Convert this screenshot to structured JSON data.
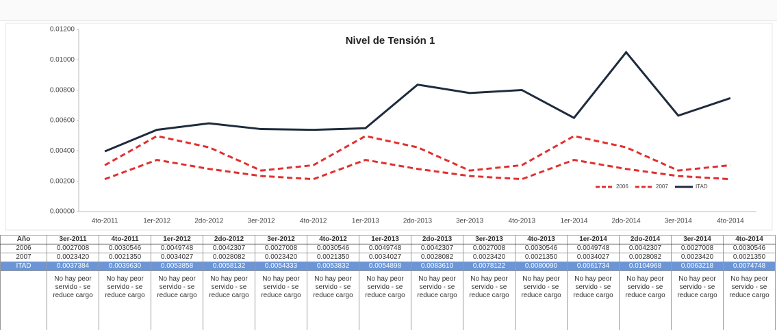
{
  "chart_data": {
    "type": "line",
    "title": "Nivel de Tensión 1",
    "categories": [
      "4to-2011",
      "1er-2012",
      "2do-2012",
      "3er-2012",
      "4to-2012",
      "1er-2013",
      "2do-2013",
      "3er-2013",
      "4to-2013",
      "1er-2014",
      "2do-2014",
      "3er-2014",
      "4to-2014"
    ],
    "series": [
      {
        "name": "2006",
        "color": "#e03030",
        "dash": true,
        "values": [
          0.0030546,
          0.0049748,
          0.0042307,
          0.0027008,
          0.0030546,
          0.0049748,
          0.0042307,
          0.0027008,
          0.0030546,
          0.0049748,
          0.0042307,
          0.0027008,
          0.0030546
        ]
      },
      {
        "name": "2007",
        "color": "#e03030",
        "dash": true,
        "values": [
          0.002135,
          0.0034027,
          0.0028082,
          0.002342,
          0.002135,
          0.0034027,
          0.0028082,
          0.002342,
          0.002135,
          0.0034027,
          0.0028082,
          0.002342,
          0.002135
        ]
      },
      {
        "name": "ITAD",
        "color": "#1f2b3d",
        "dash": false,
        "values": [
          0.003963,
          0.0053858,
          0.0058132,
          0.0054333,
          0.0053832,
          0.0054898,
          0.008361,
          0.0078122,
          0.008009,
          0.0061734,
          0.0104968,
          0.0063218,
          0.0074748
        ]
      }
    ],
    "ylim": [
      0,
      0.012
    ],
    "yticks": [
      {
        "value": 0,
        "label": "0.00000"
      },
      {
        "value": 0.002,
        "label": "0.00200"
      },
      {
        "value": 0.004,
        "label": "0.00400"
      },
      {
        "value": 0.006,
        "label": "0.00600"
      },
      {
        "value": 0.008,
        "label": "0.00800"
      },
      {
        "value": 0.01,
        "label": "0.01000"
      },
      {
        "value": 0.012,
        "label": "0.01200"
      }
    ],
    "legend": "bottom-right"
  },
  "table": {
    "header": [
      "Año",
      "3er-2011",
      "4to-2011",
      "1er-2012",
      "2do-2012",
      "3er-2012",
      "4to-2012",
      "1er-2013",
      "2do-2013",
      "3er-2013",
      "4to-2013",
      "1er-2014",
      "2do-2014",
      "3er-2014",
      "4to-2014"
    ],
    "rows": [
      [
        "2006",
        "0.0027008",
        "0.0030546",
        "0.0049748",
        "0.0042307",
        "0.0027008",
        "0.0030546",
        "0.0049748",
        "0.0042307",
        "0.0027008",
        "0.0030546",
        "0.0049748",
        "0.0042307",
        "0.0027008",
        "0.0030546"
      ],
      [
        "2007",
        "0.0023420",
        "0.0021350",
        "0.0034027",
        "0.0028082",
        "0.0023420",
        "0.0021350",
        "0.0034027",
        "0.0028082",
        "0.0023420",
        "0.0021350",
        "0.0034027",
        "0.0028082",
        "0.0023420",
        "0.0021350"
      ],
      [
        "ITAD",
        "0.0037384",
        "0.0039630",
        "0.0053858",
        "0.0058132",
        "0.0054333",
        "0.0053832",
        "0.0054898",
        "0.0083610",
        "0.0078122",
        "0.0080090",
        "0.0061734",
        "0.0104968",
        "0.0063218",
        "0.0074748"
      ]
    ],
    "notes": [
      "No hay peor servido - se reduce cargo",
      "No hay peor servido - se reduce cargo",
      "No hay peor servido - se reduce cargo",
      "No hay peor servido - se reduce cargo",
      "No hay peor servido - se reduce cargo",
      "No hay peor servido - se reduce cargo",
      "No hay peor servido - se reduce cargo",
      "No hay peor servido - se reduce cargo",
      "No hay peor servido - se reduce cargo",
      "No hay peor servido - se reduce cargo",
      "No hay peor servido - se reduce cargo",
      "No hay peor servido - se reduce cargo",
      "No hay peor servido - se reduce cargo",
      "No hay peor servido - se reduce cargo"
    ]
  }
}
